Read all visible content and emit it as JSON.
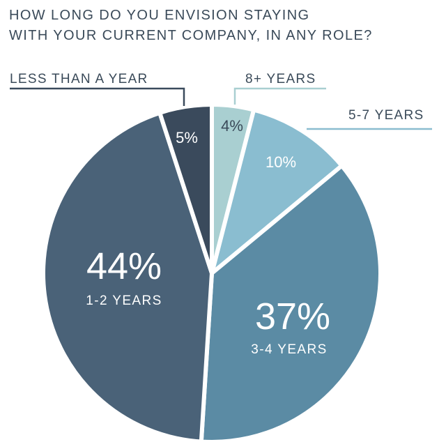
{
  "chart_data": {
    "type": "pie",
    "title_lines": [
      "How long do you envision staying",
      "with your current company, in any role?"
    ],
    "start": "12 o'clock, clockwise",
    "slices": [
      {
        "label": "8+ years",
        "value": 4,
        "value_label": "4%",
        "color": "#a9cfd1"
      },
      {
        "label": "5-7 years",
        "value": 10,
        "value_label": "10%",
        "color": "#8abdd0"
      },
      {
        "label": "3-4 years",
        "value": 37,
        "value_label": "37%",
        "color": "#5b8ba4"
      },
      {
        "label": "1-2 years",
        "value": 44,
        "value_label": "44%",
        "color": "#4a6278"
      },
      {
        "label": "Less than a year",
        "value": 5,
        "value_label": "5%",
        "color": "#3a4a5c"
      }
    ]
  }
}
